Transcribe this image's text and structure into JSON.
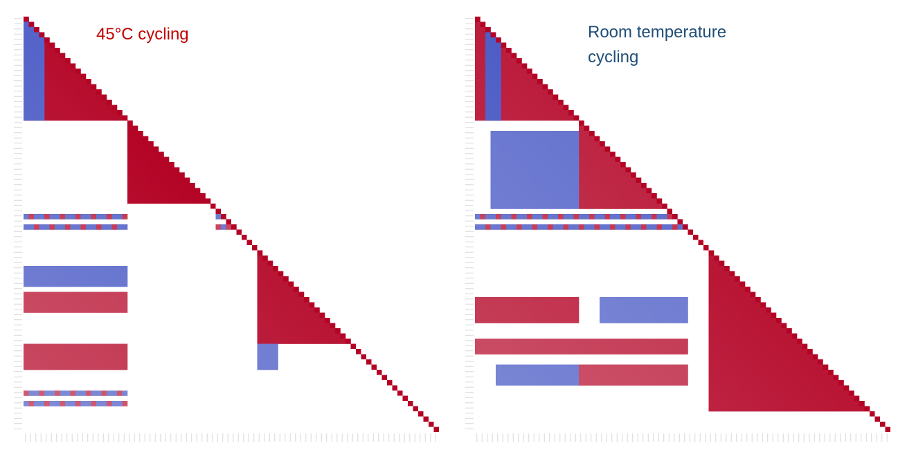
{
  "chart_data": [
    {
      "type": "heatmap",
      "title": "45°C cycling",
      "title_color": "#c00000",
      "layout": "lower-triangular correlation matrix",
      "colormap": {
        "positive": "#b40426",
        "mid": "#ffffff",
        "negative": "#3b4cc0"
      },
      "value_range": [
        -1,
        1
      ],
      "tick_labels_visible": false,
      "blocks": [
        {
          "rows": [
            0,
            19
          ],
          "cols": [
            0,
            19
          ],
          "value": 0.95
        },
        {
          "rows": [
            0,
            19
          ],
          "cols": [
            0,
            3
          ],
          "value": -0.8
        },
        {
          "rows": [
            20,
            35
          ],
          "cols": [
            20,
            35
          ],
          "value": 1.0
        },
        {
          "rows": [
            37,
            40
          ],
          "cols": [
            0,
            19
          ],
          "value": -0.7,
          "striped": true
        },
        {
          "rows": [
            37,
            40
          ],
          "cols": [
            37,
            40
          ],
          "value": 0.6,
          "striped": true
        },
        {
          "rows": [
            45,
            62
          ],
          "cols": [
            45,
            62
          ],
          "value": 0.9
        },
        {
          "rows": [
            53,
            56
          ],
          "cols": [
            0,
            19
          ],
          "value": 0.7
        },
        {
          "rows": [
            48,
            51
          ],
          "cols": [
            0,
            19
          ],
          "value": -0.7
        },
        {
          "rows": [
            63,
            67
          ],
          "cols": [
            0,
            19
          ],
          "value": 0.75
        },
        {
          "rows": [
            63,
            67
          ],
          "cols": [
            45,
            48
          ],
          "value": -0.6
        },
        {
          "rows": [
            71,
            75
          ],
          "cols": [
            0,
            19
          ],
          "value": -0.6,
          "striped": true
        }
      ]
    },
    {
      "type": "heatmap",
      "title": "Room temperature cycling",
      "title_lines": [
        "Room temperature",
        "cycling"
      ],
      "title_color": "#1f4e79",
      "layout": "lower-triangular correlation matrix",
      "colormap": {
        "positive": "#b40426",
        "mid": "#ffffff",
        "negative": "#3b4cc0"
      },
      "value_range": [
        -1,
        1
      ],
      "tick_labels_visible": false,
      "blocks": [
        {
          "rows": [
            0,
            19
          ],
          "cols": [
            0,
            19
          ],
          "value": 0.85
        },
        {
          "rows": [
            0,
            19
          ],
          "cols": [
            2,
            4
          ],
          "value": -0.85
        },
        {
          "rows": [
            20,
            36
          ],
          "cols": [
            20,
            36
          ],
          "value": 0.8
        },
        {
          "rows": [
            22,
            36
          ],
          "cols": [
            3,
            19
          ],
          "value": -0.65
        },
        {
          "rows": [
            37,
            40
          ],
          "cols": [
            0,
            40
          ],
          "value": -0.7,
          "striped": true
        },
        {
          "rows": [
            45,
            75
          ],
          "cols": [
            45,
            75
          ],
          "value": 0.9
        },
        {
          "rows": [
            54,
            58
          ],
          "cols": [
            0,
            19
          ],
          "value": 0.8
        },
        {
          "rows": [
            54,
            58
          ],
          "cols": [
            24,
            40
          ],
          "value": -0.6
        },
        {
          "rows": [
            62,
            64
          ],
          "cols": [
            0,
            40
          ],
          "value": 0.7
        },
        {
          "rows": [
            67,
            70
          ],
          "cols": [
            4,
            19
          ],
          "value": -0.65
        },
        {
          "rows": [
            67,
            70
          ],
          "cols": [
            20,
            40
          ],
          "value": 0.65
        }
      ]
    }
  ]
}
